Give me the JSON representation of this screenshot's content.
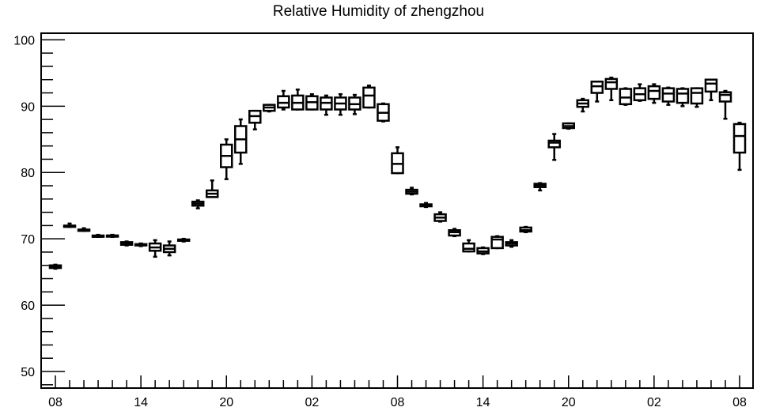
{
  "chart_data": {
    "type": "box",
    "title": "Relative Humidity of zhengzhou",
    "xlabel": "",
    "ylabel": "",
    "ylim": [
      47.5,
      101
    ],
    "yticks": [
      50,
      60,
      70,
      80,
      90,
      100
    ],
    "xlim": [
      0,
      48
    ],
    "xticks": [
      {
        "pos": 0,
        "label": "08"
      },
      {
        "pos": 6,
        "label": "14"
      },
      {
        "pos": 12,
        "label": "20"
      },
      {
        "pos": 18,
        "label": "02"
      },
      {
        "pos": 24,
        "label": "08"
      },
      {
        "pos": 30,
        "label": "14"
      },
      {
        "pos": 36,
        "label": "20"
      },
      {
        "pos": 42,
        "label": "02"
      },
      {
        "pos": 48,
        "label": "08"
      }
    ],
    "boxes": [
      {
        "x": 0,
        "min": 65.5,
        "q1": 65.6,
        "median": 65.8,
        "q3": 66.0,
        "max": 66.1
      },
      {
        "x": 1,
        "min": 71.8,
        "q1": 71.8,
        "median": 71.9,
        "q3": 72.0,
        "max": 72.3
      },
      {
        "x": 2,
        "min": 71.2,
        "q1": 71.2,
        "median": 71.3,
        "q3": 71.4,
        "max": 71.6
      },
      {
        "x": 3,
        "min": 70.3,
        "q1": 70.3,
        "median": 70.4,
        "q3": 70.5,
        "max": 70.6
      },
      {
        "x": 4,
        "min": 70.3,
        "q1": 70.4,
        "median": 70.5,
        "q3": 70.5,
        "max": 70.6
      },
      {
        "x": 5,
        "min": 69.0,
        "q1": 69.1,
        "median": 69.3,
        "q3": 69.5,
        "max": 69.6
      },
      {
        "x": 6,
        "min": 68.9,
        "q1": 69.0,
        "median": 69.1,
        "q3": 69.2,
        "max": 69.3
      },
      {
        "x": 7,
        "min": 67.3,
        "q1": 68.2,
        "median": 68.7,
        "q3": 69.3,
        "max": 69.8
      },
      {
        "x": 8,
        "min": 67.5,
        "q1": 68.0,
        "median": 68.5,
        "q3": 69.0,
        "max": 69.6
      },
      {
        "x": 9,
        "min": 69.6,
        "q1": 69.7,
        "median": 69.8,
        "q3": 69.9,
        "max": 70.0
      },
      {
        "x": 10,
        "min": 74.6,
        "q1": 75.0,
        "median": 75.3,
        "q3": 75.6,
        "max": 75.8
      },
      {
        "x": 11,
        "min": 76.3,
        "q1": 76.3,
        "median": 76.8,
        "q3": 77.3,
        "max": 78.8
      },
      {
        "x": 12,
        "min": 79.0,
        "q1": 80.8,
        "median": 82.5,
        "q3": 84.2,
        "max": 85.0
      },
      {
        "x": 13,
        "min": 81.3,
        "q1": 83.0,
        "median": 85.0,
        "q3": 87.0,
        "max": 88.0
      },
      {
        "x": 14,
        "min": 86.5,
        "q1": 87.5,
        "median": 88.5,
        "q3": 89.3,
        "max": 89.3
      },
      {
        "x": 15,
        "min": 89.2,
        "q1": 89.3,
        "median": 89.8,
        "q3": 90.2,
        "max": 90.2
      },
      {
        "x": 16,
        "min": 89.5,
        "q1": 89.8,
        "median": 90.5,
        "q3": 91.5,
        "max": 92.3
      },
      {
        "x": 17,
        "min": 89.5,
        "q1": 89.5,
        "median": 90.5,
        "q3": 91.6,
        "max": 92.5
      },
      {
        "x": 18,
        "min": 89.5,
        "q1": 89.5,
        "median": 90.6,
        "q3": 91.5,
        "max": 91.8
      },
      {
        "x": 19,
        "min": 88.7,
        "q1": 89.5,
        "median": 90.5,
        "q3": 91.3,
        "max": 91.6
      },
      {
        "x": 20,
        "min": 88.7,
        "q1": 89.5,
        "median": 90.4,
        "q3": 91.3,
        "max": 91.8
      },
      {
        "x": 21,
        "min": 88.8,
        "q1": 89.5,
        "median": 90.3,
        "q3": 91.3,
        "max": 91.7
      },
      {
        "x": 22,
        "min": 89.8,
        "q1": 89.8,
        "median": 91.6,
        "q3": 92.8,
        "max": 93.1
      },
      {
        "x": 23,
        "min": 87.7,
        "q1": 87.8,
        "median": 89.0,
        "q3": 90.3,
        "max": 90.4
      },
      {
        "x": 24,
        "min": 79.9,
        "q1": 79.9,
        "median": 81.3,
        "q3": 82.9,
        "max": 83.8
      },
      {
        "x": 25,
        "min": 76.7,
        "q1": 76.8,
        "median": 77.1,
        "q3": 77.4,
        "max": 77.7
      },
      {
        "x": 26,
        "min": 74.8,
        "q1": 74.9,
        "median": 75.1,
        "q3": 75.2,
        "max": 75.4
      },
      {
        "x": 27,
        "min": 72.6,
        "q1": 72.7,
        "median": 73.2,
        "q3": 73.7,
        "max": 74.0
      },
      {
        "x": 28,
        "min": 70.4,
        "q1": 70.5,
        "median": 71.0,
        "q3": 71.3,
        "max": 71.5
      },
      {
        "x": 29,
        "min": 68.1,
        "q1": 68.1,
        "median": 68.5,
        "q3": 69.3,
        "max": 69.8
      },
      {
        "x": 30,
        "min": 67.7,
        "q1": 67.8,
        "median": 68.1,
        "q3": 68.6,
        "max": 68.7
      },
      {
        "x": 31,
        "min": 68.6,
        "q1": 68.6,
        "median": 69.9,
        "q3": 70.3,
        "max": 70.4
      },
      {
        "x": 32,
        "min": 68.8,
        "q1": 69.0,
        "median": 69.3,
        "q3": 69.5,
        "max": 69.8
      },
      {
        "x": 33,
        "min": 71.0,
        "q1": 71.1,
        "median": 71.3,
        "q3": 71.7,
        "max": 71.8
      },
      {
        "x": 34,
        "min": 77.3,
        "q1": 77.8,
        "median": 78.1,
        "q3": 78.3,
        "max": 78.4
      },
      {
        "x": 35,
        "min": 81.9,
        "q1": 83.8,
        "median": 84.5,
        "q3": 84.8,
        "max": 85.8
      },
      {
        "x": 36,
        "min": 86.6,
        "q1": 86.7,
        "median": 87.0,
        "q3": 87.4,
        "max": 87.4
      },
      {
        "x": 37,
        "min": 89.2,
        "q1": 89.9,
        "median": 90.4,
        "q3": 90.9,
        "max": 91.1
      },
      {
        "x": 38,
        "min": 90.7,
        "q1": 92.0,
        "median": 93.0,
        "q3": 93.7,
        "max": 93.7
      },
      {
        "x": 39,
        "min": 90.9,
        "q1": 92.6,
        "median": 93.6,
        "q3": 94.1,
        "max": 94.3
      },
      {
        "x": 40,
        "min": 90.2,
        "q1": 90.3,
        "median": 91.3,
        "q3": 92.6,
        "max": 92.7
      },
      {
        "x": 41,
        "min": 90.8,
        "q1": 90.9,
        "median": 91.8,
        "q3": 92.7,
        "max": 93.3
      },
      {
        "x": 42,
        "min": 90.5,
        "q1": 91.1,
        "median": 92.3,
        "q3": 93.0,
        "max": 93.3
      },
      {
        "x": 43,
        "min": 90.2,
        "q1": 90.7,
        "median": 91.9,
        "q3": 92.7,
        "max": 92.8
      },
      {
        "x": 44,
        "min": 90.0,
        "q1": 90.5,
        "median": 91.9,
        "q3": 92.6,
        "max": 92.7
      },
      {
        "x": 45,
        "min": 89.9,
        "q1": 90.4,
        "median": 92.0,
        "q3": 92.7,
        "max": 92.7
      },
      {
        "x": 46,
        "min": 90.9,
        "q1": 92.2,
        "median": 93.4,
        "q3": 94.0,
        "max": 94.0
      },
      {
        "x": 47,
        "min": 88.1,
        "q1": 90.7,
        "median": 91.7,
        "q3": 92.1,
        "max": 92.3
      },
      {
        "x": 48,
        "min": 80.4,
        "q1": 83.0,
        "median": 85.5,
        "q3": 87.3,
        "max": 87.5
      }
    ],
    "grid": false,
    "legend": "none",
    "colors": {
      "stroke": "#000000",
      "background": "#ffffff"
    }
  }
}
